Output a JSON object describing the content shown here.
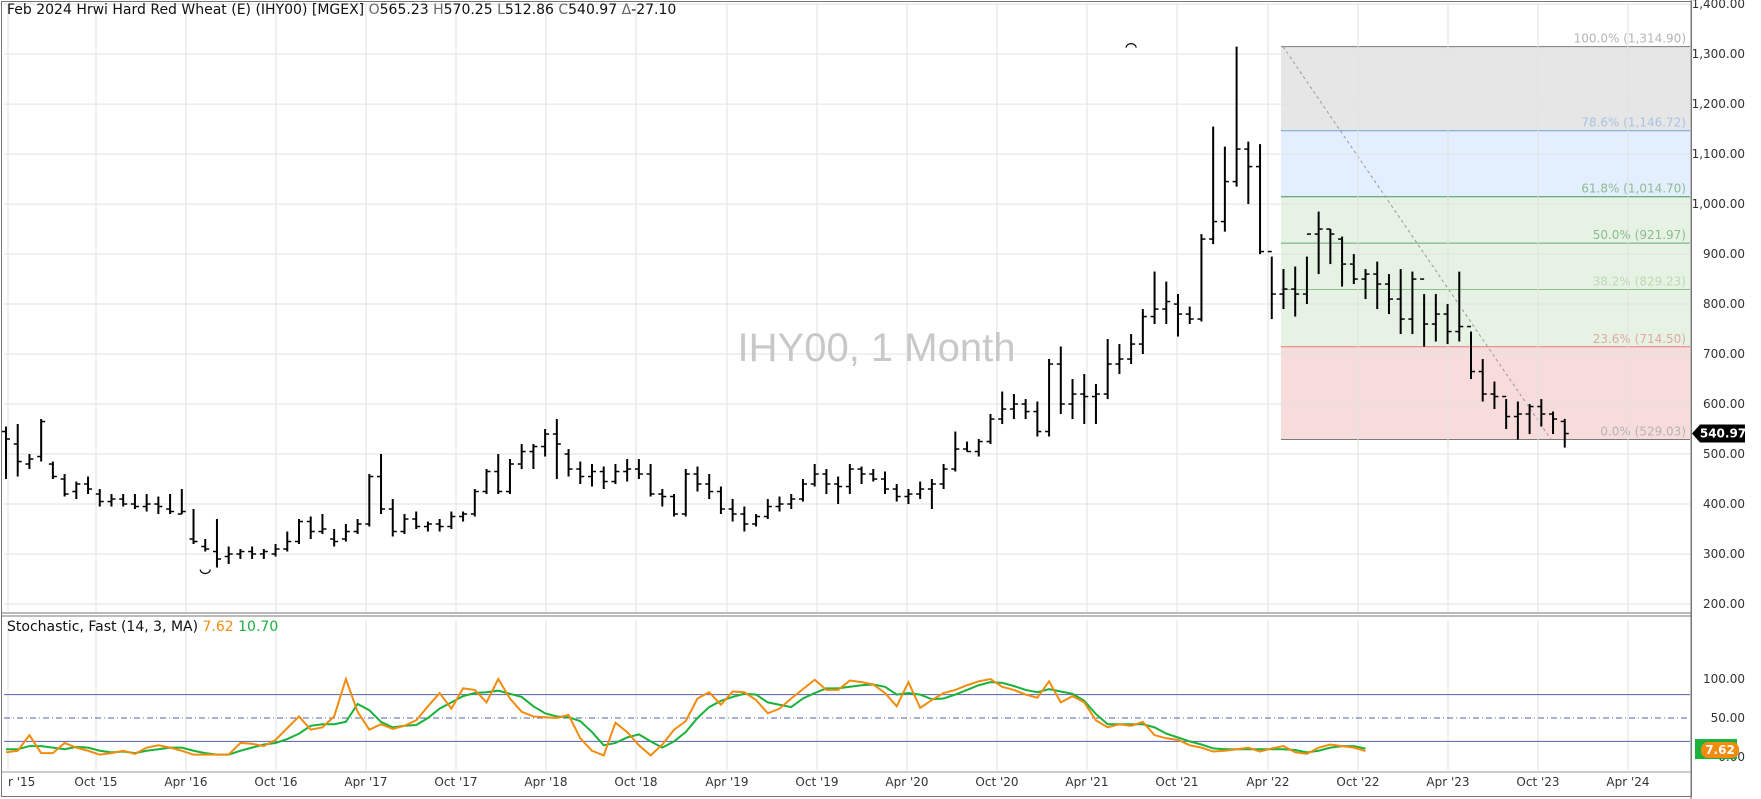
{
  "header": {
    "symbol_line": "Feb 2024 Hrwi Hard Red Wheat (E) (IHY00) [MGEX]",
    "open_label": "O",
    "open": "565.23",
    "high_label": "H",
    "high": "570.25",
    "low_label": "L",
    "low": "512.86",
    "close_label": "C",
    "close": "540.97",
    "change_label": "Δ",
    "change": "-27.10"
  },
  "watermark": "IHY00, 1 Month",
  "colors": {
    "price_bar": "#000000",
    "stoch_k": "#f28c0f",
    "stoch_d": "#19b23b",
    "fib_top_fill": "#e6e6e6",
    "fib_blue_fill": "#e3efff",
    "fib_green_fill": "#e6f3e4",
    "fib_red_fill": "#f8dcdc",
    "grid": "#e2e2e2",
    "last_price_badge": "#000000"
  },
  "chart_data": [
    {
      "type": "ohlc",
      "title": "Feb 2024 Hrwi Hard Red Wheat (E) (IHY00) [MGEX]",
      "interval": "1 Month",
      "y_ticks": [
        "200.00",
        "300.00",
        "400.00",
        "500.00",
        "600.00",
        "700.00",
        "800.00",
        "900.00",
        "1,000.00",
        "1,100.00",
        "1,200.00",
        "1,300.00",
        "1,400.00"
      ],
      "ylim": [
        200,
        1400
      ],
      "x_ticks": [
        "r '15",
        "Oct '15",
        "Apr '16",
        "Oct '16",
        "Apr '17",
        "Oct '17",
        "Apr '18",
        "Oct '18",
        "Apr '19",
        "Oct '19",
        "Apr '20",
        "Oct '20",
        "Apr '21",
        "Oct '21",
        "Apr '22",
        "Oct '22",
        "Apr '23",
        "Oct '23",
        "Apr '24"
      ],
      "last_price": "540.97",
      "swing_low_marker": {
        "date": "Aug 2016",
        "value": 273
      },
      "swing_high_marker": {
        "date": "Mar 2022",
        "value": 1314.9
      },
      "fib_levels": [
        {
          "label": "100.0% (1,314.90)",
          "value": 1314.9
        },
        {
          "label": "78.6% (1,146.72)",
          "value": 1146.72
        },
        {
          "label": "61.8% (1,014.70)",
          "value": 1014.7
        },
        {
          "label": "50.0% (921.97)",
          "value": 921.97
        },
        {
          "label": "38.2% (829.23)",
          "value": 829.23
        },
        {
          "label": "23.6% (714.50)",
          "value": 714.5
        },
        {
          "label": "0.0% (529.03)",
          "value": 529.03
        }
      ],
      "bars": [
        [
          545,
          555,
          450,
          530
        ],
        [
          520,
          560,
          455,
          485
        ],
        [
          480,
          500,
          470,
          490
        ],
        [
          495,
          570,
          485,
          565
        ],
        [
          480,
          485,
          450,
          455
        ],
        [
          450,
          460,
          415,
          420
        ],
        [
          425,
          445,
          410,
          440
        ],
        [
          440,
          455,
          420,
          430
        ],
        [
          420,
          430,
          395,
          405
        ],
        [
          405,
          420,
          395,
          410
        ],
        [
          410,
          420,
          395,
          400
        ],
        [
          400,
          420,
          390,
          395
        ],
        [
          395,
          420,
          385,
          400
        ],
        [
          400,
          415,
          380,
          395
        ],
        [
          390,
          420,
          380,
          385
        ],
        [
          380,
          430,
          380,
          385
        ],
        [
          330,
          390,
          320,
          325
        ],
        [
          315,
          330,
          305,
          310
        ],
        [
          305,
          370,
          273,
          290
        ],
        [
          295,
          315,
          280,
          300
        ],
        [
          300,
          310,
          290,
          305
        ],
        [
          305,
          315,
          290,
          300
        ],
        [
          300,
          310,
          290,
          305
        ],
        [
          300,
          320,
          295,
          310
        ],
        [
          310,
          345,
          305,
          325
        ],
        [
          325,
          370,
          320,
          365
        ],
        [
          365,
          375,
          330,
          345
        ],
        [
          345,
          380,
          340,
          350
        ],
        [
          330,
          350,
          315,
          325
        ],
        [
          330,
          360,
          325,
          345
        ],
        [
          345,
          370,
          340,
          360
        ],
        [
          360,
          460,
          355,
          455
        ],
        [
          455,
          500,
          380,
          390
        ],
        [
          390,
          410,
          335,
          345
        ],
        [
          345,
          380,
          340,
          370
        ],
        [
          370,
          385,
          350,
          355
        ],
        [
          355,
          365,
          345,
          360
        ],
        [
          360,
          370,
          345,
          355
        ],
        [
          355,
          385,
          350,
          375
        ],
        [
          375,
          385,
          365,
          380
        ],
        [
          380,
          430,
          375,
          425
        ],
        [
          425,
          470,
          420,
          465
        ],
        [
          465,
          500,
          420,
          425
        ],
        [
          425,
          490,
          420,
          480
        ],
        [
          480,
          520,
          470,
          505
        ],
        [
          505,
          520,
          470,
          515
        ],
        [
          515,
          550,
          495,
          540
        ],
        [
          540,
          570,
          450,
          520
        ],
        [
          500,
          510,
          455,
          470
        ],
        [
          470,
          485,
          440,
          455
        ],
        [
          455,
          480,
          435,
          465
        ],
        [
          465,
          475,
          430,
          445
        ],
        [
          445,
          480,
          440,
          465
        ],
        [
          465,
          490,
          445,
          470
        ],
        [
          470,
          490,
          450,
          460
        ],
        [
          460,
          480,
          415,
          420
        ],
        [
          420,
          430,
          395,
          415
        ],
        [
          415,
          420,
          375,
          380
        ],
        [
          380,
          470,
          375,
          460
        ],
        [
          460,
          475,
          425,
          440
        ],
        [
          440,
          460,
          410,
          425
        ],
        [
          425,
          435,
          380,
          390
        ],
        [
          390,
          410,
          365,
          380
        ],
        [
          380,
          395,
          345,
          360
        ],
        [
          360,
          380,
          355,
          375
        ],
        [
          375,
          410,
          370,
          395
        ],
        [
          395,
          415,
          385,
          400
        ],
        [
          400,
          420,
          390,
          410
        ],
        [
          410,
          450,
          405,
          440
        ],
        [
          440,
          480,
          435,
          460
        ],
        [
          460,
          470,
          420,
          440
        ],
        [
          440,
          455,
          400,
          435
        ],
        [
          435,
          480,
          420,
          470
        ],
        [
          470,
          475,
          440,
          460
        ],
        [
          460,
          470,
          445,
          450
        ],
        [
          450,
          465,
          420,
          430
        ],
        [
          430,
          440,
          405,
          415
        ],
        [
          415,
          430,
          400,
          420
        ],
        [
          420,
          445,
          410,
          430
        ],
        [
          430,
          450,
          390,
          440
        ],
        [
          440,
          480,
          430,
          470
        ],
        [
          470,
          545,
          465,
          510
        ],
        [
          510,
          525,
          505,
          505
        ],
        [
          505,
          530,
          495,
          525
        ],
        [
          525,
          580,
          520,
          570
        ],
        [
          570,
          625,
          560,
          590
        ],
        [
          590,
          620,
          570,
          600
        ],
        [
          600,
          610,
          570,
          585
        ],
        [
          585,
          605,
          535,
          545
        ],
        [
          545,
          690,
          535,
          680
        ],
        [
          680,
          715,
          580,
          600
        ],
        [
          600,
          650,
          570,
          620
        ],
        [
          620,
          660,
          560,
          615
        ],
        [
          615,
          640,
          560,
          620
        ],
        [
          620,
          730,
          610,
          680
        ],
        [
          680,
          720,
          660,
          690
        ],
        [
          690,
          740,
          680,
          720
        ],
        [
          720,
          790,
          700,
          775
        ],
        [
          775,
          865,
          760,
          790
        ],
        [
          790,
          845,
          760,
          805
        ],
        [
          800,
          820,
          735,
          780
        ],
        [
          780,
          795,
          760,
          770
        ],
        [
          770,
          940,
          765,
          930
        ],
        [
          930,
          1155,
          920,
          965
        ],
        [
          965,
          1115,
          945,
          1045
        ],
        [
          1045,
          1314.9,
          1035,
          1110
        ],
        [
          1110,
          1125,
          1000,
          1075
        ],
        [
          1075,
          1120,
          900,
          905
        ],
        [
          905,
          895,
          770,
          820
        ],
        [
          820,
          870,
          790,
          830
        ],
        [
          830,
          875,
          775,
          820
        ],
        [
          820,
          895,
          800,
          940
        ],
        [
          940,
          985,
          860,
          950
        ],
        [
          950,
          950,
          880,
          940
        ],
        [
          930,
          935,
          835,
          880
        ],
        [
          880,
          900,
          840,
          850
        ],
        [
          850,
          870,
          810,
          860
        ],
        [
          860,
          885,
          790,
          840
        ],
        [
          840,
          860,
          780,
          810
        ],
        [
          810,
          870,
          740,
          770
        ],
        [
          770,
          865,
          740,
          850
        ],
        [
          850,
          820,
          715,
          760
        ],
        [
          760,
          820,
          725,
          780
        ],
        [
          780,
          800,
          720,
          745
        ],
        [
          745,
          865,
          725,
          755
        ],
        [
          755,
          745,
          650,
          665
        ],
        [
          665,
          690,
          605,
          620
        ],
        [
          620,
          645,
          590,
          615
        ],
        [
          615,
          610,
          550,
          575
        ],
        [
          575,
          605,
          529,
          580
        ],
        [
          580,
          600,
          540,
          595
        ],
        [
          595,
          610,
          555,
          580
        ],
        [
          580,
          585,
          540,
          570
        ],
        [
          565.23,
          570.25,
          512.86,
          540.97
        ]
      ]
    },
    {
      "type": "line",
      "title": "Stochastic, Fast",
      "params": "(14, 3, MA)",
      "k_label": "7.62",
      "d_label": "10.70",
      "last_k": "7.62",
      "y_ticks": [
        "0.00",
        "50.00",
        "100.00"
      ],
      "ylim": [
        0,
        100
      ],
      "levels": [
        80,
        50,
        20
      ],
      "series": [
        {
          "name": "%K",
          "values": [
            6,
            8,
            28,
            5,
            5,
            18,
            12,
            8,
            3,
            5,
            8,
            4,
            12,
            15,
            12,
            8,
            3,
            3,
            3,
            3,
            18,
            17,
            14,
            22,
            37,
            52,
            35,
            38,
            52,
            100,
            58,
            35,
            42,
            36,
            40,
            47,
            65,
            82,
            62,
            88,
            86,
            70,
            100,
            75,
            58,
            52,
            51,
            50,
            54,
            24,
            8,
            2,
            44,
            32,
            15,
            2,
            16,
            35,
            46,
            75,
            83,
            67,
            84,
            83,
            73,
            56,
            62,
            75,
            87,
            99,
            86,
            86,
            98,
            96,
            93,
            82,
            65,
            96,
            63,
            73,
            82,
            86,
            92,
            97,
            100,
            90,
            86,
            80,
            76,
            97,
            70,
            78,
            70,
            47,
            38,
            42,
            40,
            45,
            28,
            24,
            22,
            15,
            12,
            7,
            8,
            10,
            12,
            7,
            11,
            14,
            6,
            4,
            12,
            16,
            14,
            12,
            7.62
          ]
        },
        {
          "name": "%D",
          "values": [
            10,
            10,
            14,
            14,
            12,
            10,
            13,
            12,
            8,
            6,
            7,
            5,
            8,
            10,
            12,
            12,
            8,
            5,
            3,
            3,
            8,
            12,
            16,
            18,
            23,
            30,
            40,
            42,
            42,
            45,
            68,
            60,
            45,
            38,
            40,
            41,
            50,
            62,
            70,
            78,
            82,
            83,
            85,
            81,
            77,
            65,
            56,
            52,
            51,
            46,
            32,
            15,
            18,
            25,
            29,
            20,
            12,
            20,
            32,
            50,
            64,
            72,
            77,
            81,
            80,
            70,
            67,
            64,
            75,
            82,
            88,
            88,
            90,
            92,
            93,
            90,
            80,
            82,
            80,
            74,
            75,
            80,
            86,
            92,
            96,
            95,
            91,
            86,
            83,
            87,
            84,
            81,
            72,
            55,
            42,
            42,
            42,
            42,
            38,
            30,
            25,
            20,
            16,
            11,
            10,
            10,
            10,
            10,
            10,
            10,
            9,
            6,
            8,
            12,
            14,
            14,
            10.7
          ]
        }
      ]
    }
  ]
}
